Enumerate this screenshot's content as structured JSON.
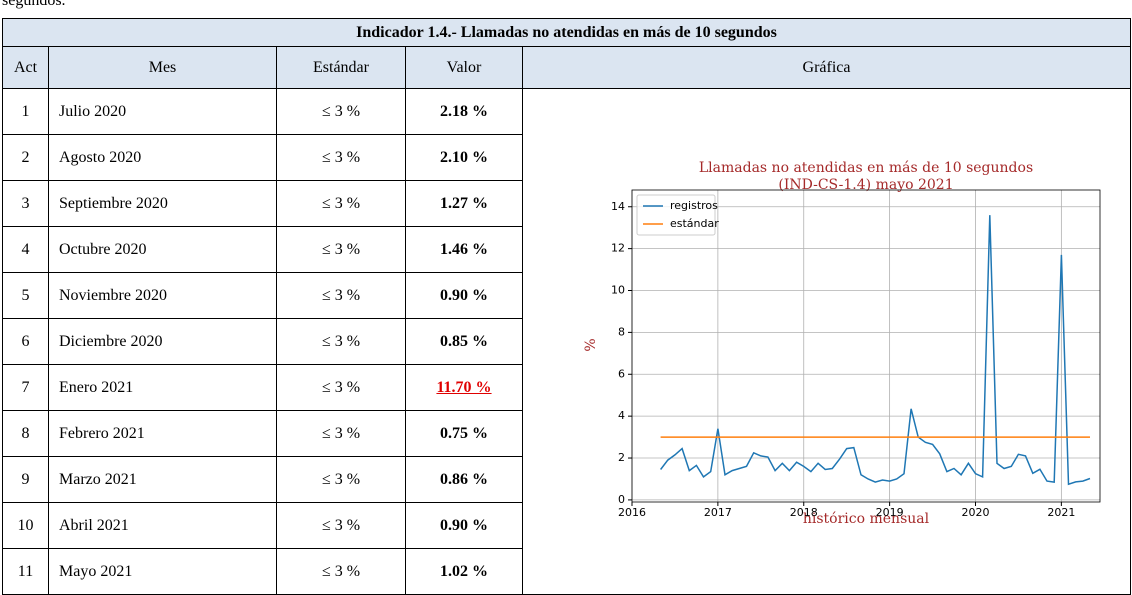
{
  "header": {
    "caption_fragment": "segundos."
  },
  "table": {
    "title": "Indicador 1.4.- Llamadas no atendidas en más de 10 segundos",
    "columns": [
      "Act",
      "Mes",
      "Estándar",
      "Valor",
      "Gráfica"
    ],
    "rows": [
      [
        "1",
        "Julio 2020",
        "≤ 3 %",
        "2.18 %"
      ],
      [
        "2",
        "Agosto 2020",
        "≤ 3 %",
        "2.10 %"
      ],
      [
        "3",
        "Septiembre 2020",
        "≤ 3 %",
        "1.27 %"
      ],
      [
        "4",
        "Octubre 2020",
        "≤ 3 %",
        "1.46 %"
      ],
      [
        "5",
        "Noviembre 2020",
        "≤ 3 %",
        "0.90 %"
      ],
      [
        "6",
        "Diciembre 2020",
        "≤ 3 %",
        "0.85 %"
      ],
      [
        "7",
        "Enero 2021",
        "≤ 3 %",
        "11.70 %"
      ],
      [
        "8",
        "Febrero 2021",
        "≤ 3 %",
        "0.75 %"
      ],
      [
        "9",
        "Marzo 2021",
        "≤ 3 %",
        "0.86 %"
      ],
      [
        "10",
        "Abril 2021",
        "≤ 3 %",
        "0.90 %"
      ],
      [
        "11",
        "Mayo 2021",
        "≤ 3 %",
        "1.02 %"
      ]
    ]
  },
  "chart_data": {
    "type": "line",
    "title": [
      "Llamadas no atendidas en más de 10 segundos",
      "(IND-CS-1.4) mayo 2021"
    ],
    "x_label": "histórico mensual",
    "y_label": "%",
    "x": [
      2016.333,
      2016.417,
      2016.5,
      2016.583,
      2016.667,
      2016.75,
      2016.833,
      2016.917,
      2017,
      2017.083,
      2017.167,
      2017.25,
      2017.333,
      2017.417,
      2017.5,
      2017.583,
      2017.667,
      2017.75,
      2017.833,
      2017.917,
      2018,
      2018.083,
      2018.167,
      2018.25,
      2018.333,
      2018.417,
      2018.5,
      2018.583,
      2018.667,
      2018.75,
      2018.833,
      2018.917,
      2019,
      2019.083,
      2019.167,
      2019.25,
      2019.333,
      2019.417,
      2019.5,
      2019.583,
      2019.667,
      2019.75,
      2019.833,
      2019.917,
      2020,
      2020.083,
      2020.167,
      2020.25,
      2020.333,
      2020.417,
      2020.5,
      2020.583,
      2020.667,
      2020.75,
      2020.833,
      2020.917,
      2021,
      2021.083,
      2021.167,
      2021.25,
      2021.333
    ],
    "series": [
      {
        "name": "registros",
        "color": "#1f77b4",
        "values": [
          1.45,
          1.9,
          2.15,
          2.45,
          1.4,
          1.65,
          1.1,
          1.35,
          3.4,
          1.2,
          1.4,
          1.5,
          1.6,
          2.25,
          2.1,
          2.05,
          1.4,
          1.75,
          1.4,
          1.8,
          1.6,
          1.35,
          1.75,
          1.45,
          1.5,
          1.95,
          2.45,
          2.5,
          1.2,
          1.0,
          0.85,
          0.95,
          0.9,
          1.0,
          1.25,
          4.35,
          3.0,
          2.75,
          2.65,
          2.2,
          1.35,
          1.5,
          1.2,
          1.75,
          1.25,
          1.1,
          13.6,
          1.75,
          1.5,
          1.6,
          2.18,
          2.1,
          1.27,
          1.46,
          0.9,
          0.85,
          11.7,
          0.75,
          0.86,
          0.9,
          1.02
        ]
      },
      {
        "name": "estándar",
        "color": "#ff7f0e",
        "values": [
          3,
          3,
          3,
          3,
          3,
          3,
          3,
          3,
          3,
          3,
          3,
          3,
          3,
          3,
          3,
          3,
          3,
          3,
          3,
          3,
          3,
          3,
          3,
          3,
          3,
          3,
          3,
          3,
          3,
          3,
          3,
          3,
          3,
          3,
          3,
          3,
          3,
          3,
          3,
          3,
          3,
          3,
          3,
          3,
          3,
          3,
          3,
          3,
          3,
          3,
          3,
          3,
          3,
          3,
          3,
          3,
          3,
          3,
          3,
          3,
          3
        ]
      }
    ],
    "xlim": [
      2016,
      2021.45
    ],
    "ylim": [
      -0.1,
      14.8
    ],
    "xticks": [
      2016,
      2017,
      2018,
      2019,
      2020,
      2021
    ],
    "yticks": [
      0,
      2,
      4,
      6,
      8,
      10,
      12,
      14
    ],
    "grid": true,
    "legend": "upper left"
  }
}
